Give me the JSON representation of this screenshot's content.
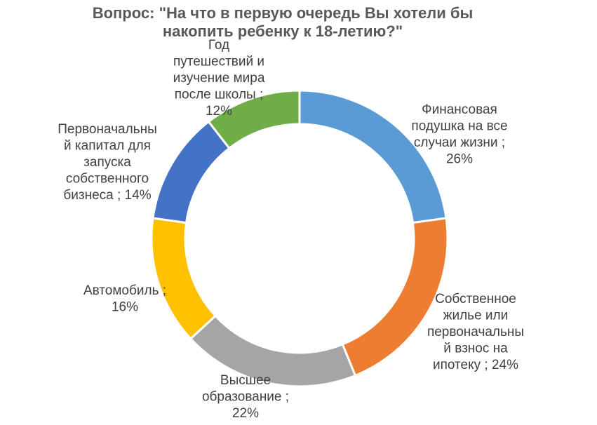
{
  "chart_data": {
    "type": "donut",
    "title_lines": [
      "Вопрос: \"На что в первую очередь Вы хотели бы",
      "накопить ребенку к 18-летию?\""
    ],
    "legend": "none",
    "slices": [
      {
        "name": "Финансовая подушка на все случаи жизни",
        "value": 26,
        "color": "#5B9BD5",
        "label_lines": [
          "Финансовая",
          "подушка на все",
          "случаи жизни ;",
          "26%"
        ]
      },
      {
        "name": "Собственное жилье или первоначальный взнос на ипотеку",
        "value": 24,
        "color": "#ED7D31",
        "label_lines": [
          "Собственное",
          "жилье или",
          "первоначальны",
          "й взнос на",
          "ипотеку ; 24%"
        ]
      },
      {
        "name": "Высшее образование",
        "value": 22,
        "color": "#A5A5A5",
        "label_lines": [
          "Высшее",
          "образование ;",
          "22%"
        ]
      },
      {
        "name": "Автомобиль",
        "value": 16,
        "color": "#FFC000",
        "label_lines": [
          "Автомобиль ;",
          "16%"
        ]
      },
      {
        "name": "Первоначальный капитал для запуска собственного бизнеса",
        "value": 14,
        "color": "#4472C4",
        "label_lines": [
          "Первоначальны",
          "й капитал для",
          "запуска",
          "собственного",
          "бизнеса ; 14%"
        ]
      },
      {
        "name": "Год путешествий и изучение мира после школы",
        "value": 12,
        "color": "#70AD47",
        "label_lines": [
          "Год",
          "путешествий и",
          "изучение мира",
          "после школы ;",
          "12%"
        ]
      }
    ]
  }
}
